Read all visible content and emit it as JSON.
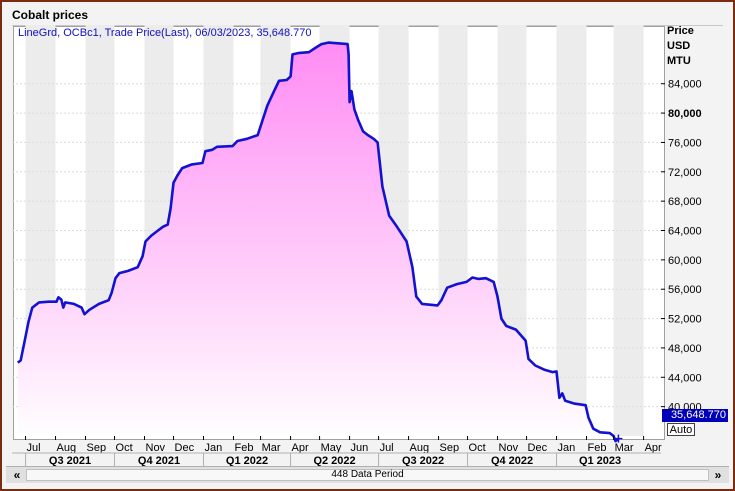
{
  "window": {
    "title": "Cobalt prices"
  },
  "legend": {
    "text": "LineGrd, OCBc1, Trade Price(Last), 06/03/2023, 35,648.770"
  },
  "axis": {
    "title_lines": [
      "Price",
      "USD",
      "MTU"
    ]
  },
  "last_value_label": "35,648.770",
  "auto_button_label": "Auto",
  "scroll": {
    "label": "448 Data Period",
    "left_label": "«",
    "right_label": "»"
  },
  "colors": {
    "line": "#1212d0",
    "fill_top": "#ff8cf4",
    "fill_bottom": "#ffffff",
    "band": "#ececec",
    "badge": "#0000b8"
  },
  "chart_data": {
    "type": "area",
    "series_name": "OCBc1",
    "y_axis": {
      "ticks": [
        40000,
        44000,
        48000,
        52000,
        56000,
        60000,
        64000,
        68000,
        72000,
        76000,
        80000,
        84000
      ],
      "tick_labels": [
        "40,000",
        "44,000",
        "48,000",
        "52,000",
        "56,000",
        "60,000",
        "64,000",
        "68,000",
        "72,000",
        "76,000",
        "80,000",
        "84,000"
      ],
      "bold_ticks": [
        80000
      ],
      "ylim": [
        36000,
        92000
      ],
      "side": "right"
    },
    "x_axis": {
      "months": [
        "Jul",
        "Aug",
        "Sep",
        "Oct",
        "Nov",
        "Dec",
        "Jan",
        "Feb",
        "Mar",
        "Apr",
        "May",
        "Jun",
        "Jul",
        "Aug",
        "Sep",
        "Oct",
        "Nov",
        "Dec",
        "Jan",
        "Feb",
        "Mar",
        "Apr"
      ],
      "quarters": [
        "Q3 2021",
        "Q4 2021",
        "Q1 2022",
        "Q2 2022",
        "Q3 2022",
        "Q4 2022",
        "Q1 2023"
      ],
      "range": [
        "2021-07-01",
        "2023-04-19"
      ]
    },
    "points": [
      [
        "2021-06-23",
        46000
      ],
      [
        "2021-06-26",
        46300
      ],
      [
        "2021-07-01",
        49500
      ],
      [
        "2021-07-04",
        51500
      ],
      [
        "2021-07-08",
        53500
      ],
      [
        "2021-07-15",
        54200
      ],
      [
        "2021-07-25",
        54300
      ],
      [
        "2021-08-02",
        54300
      ],
      [
        "2021-08-04",
        54900
      ],
      [
        "2021-08-07",
        54600
      ],
      [
        "2021-08-09",
        53500
      ],
      [
        "2021-08-11",
        54200
      ],
      [
        "2021-08-20",
        54000
      ],
      [
        "2021-08-28",
        53500
      ],
      [
        "2021-08-31",
        52600
      ],
      [
        "2021-09-05",
        53200
      ],
      [
        "2021-09-15",
        54000
      ],
      [
        "2021-09-25",
        54500
      ],
      [
        "2021-09-28",
        55500
      ],
      [
        "2021-10-02",
        57500
      ],
      [
        "2021-10-06",
        58200
      ],
      [
        "2021-10-15",
        58500
      ],
      [
        "2021-10-25",
        59000
      ],
      [
        "2021-10-30",
        60500
      ],
      [
        "2021-11-02",
        62500
      ],
      [
        "2021-11-08",
        63300
      ],
      [
        "2021-11-15",
        64000
      ],
      [
        "2021-11-20",
        64500
      ],
      [
        "2021-11-25",
        64800
      ],
      [
        "2021-11-28",
        67000
      ],
      [
        "2021-12-01",
        70500
      ],
      [
        "2021-12-05",
        71500
      ],
      [
        "2021-12-10",
        72500
      ],
      [
        "2021-12-20",
        73000
      ],
      [
        "2021-12-31",
        73200
      ],
      [
        "2022-01-03",
        74800
      ],
      [
        "2022-01-10",
        75000
      ],
      [
        "2022-01-15",
        75400
      ],
      [
        "2022-01-31",
        75500
      ],
      [
        "2022-02-05",
        76200
      ],
      [
        "2022-02-15",
        76500
      ],
      [
        "2022-02-26",
        77000
      ],
      [
        "2022-03-03",
        79000
      ],
      [
        "2022-03-08",
        81000
      ],
      [
        "2022-03-15",
        83000
      ],
      [
        "2022-03-20",
        84400
      ],
      [
        "2022-03-28",
        84500
      ],
      [
        "2022-04-01",
        85000
      ],
      [
        "2022-04-03",
        88000
      ],
      [
        "2022-04-10",
        88200
      ],
      [
        "2022-04-20",
        88300
      ],
      [
        "2022-04-28",
        89000
      ],
      [
        "2022-05-03",
        89400
      ],
      [
        "2022-05-10",
        89600
      ],
      [
        "2022-05-20",
        89500
      ],
      [
        "2022-05-30",
        89400
      ],
      [
        "2022-05-31",
        88000
      ],
      [
        "2022-06-01",
        81500
      ],
      [
        "2022-06-03",
        83000
      ],
      [
        "2022-06-06",
        80500
      ],
      [
        "2022-06-10",
        79000
      ],
      [
        "2022-06-15",
        77500
      ],
      [
        "2022-06-20",
        77000
      ],
      [
        "2022-06-26",
        76500
      ],
      [
        "2022-06-30",
        76000
      ],
      [
        "2022-07-05",
        70000
      ],
      [
        "2022-07-12",
        66000
      ],
      [
        "2022-07-20",
        64500
      ],
      [
        "2022-07-30",
        62500
      ],
      [
        "2022-08-05",
        59000
      ],
      [
        "2022-08-09",
        55000
      ],
      [
        "2022-08-15",
        54000
      ],
      [
        "2022-08-31",
        53800
      ],
      [
        "2022-09-04",
        54500
      ],
      [
        "2022-09-10",
        56200
      ],
      [
        "2022-09-20",
        56700
      ],
      [
        "2022-09-30",
        57000
      ],
      [
        "2022-10-06",
        57600
      ],
      [
        "2022-10-12",
        57400
      ],
      [
        "2022-10-20",
        57500
      ],
      [
        "2022-10-28",
        57000
      ],
      [
        "2022-11-01",
        55000
      ],
      [
        "2022-11-05",
        52000
      ],
      [
        "2022-11-10",
        51000
      ],
      [
        "2022-11-20",
        50500
      ],
      [
        "2022-11-30",
        49000
      ],
      [
        "2022-12-03",
        46500
      ],
      [
        "2022-12-10",
        45600
      ],
      [
        "2022-12-20",
        45000
      ],
      [
        "2022-12-28",
        44700
      ],
      [
        "2023-01-01",
        44800
      ],
      [
        "2023-01-04",
        41200
      ],
      [
        "2023-01-07",
        41800
      ],
      [
        "2023-01-10",
        40800
      ],
      [
        "2023-01-20",
        40400
      ],
      [
        "2023-01-31",
        40200
      ],
      [
        "2023-02-03",
        38500
      ],
      [
        "2023-02-08",
        37000
      ],
      [
        "2023-02-15",
        36500
      ],
      [
        "2023-02-25",
        36400
      ],
      [
        "2023-03-01",
        36000
      ],
      [
        "2023-03-03",
        35300
      ],
      [
        "2023-03-06",
        35650
      ]
    ]
  }
}
